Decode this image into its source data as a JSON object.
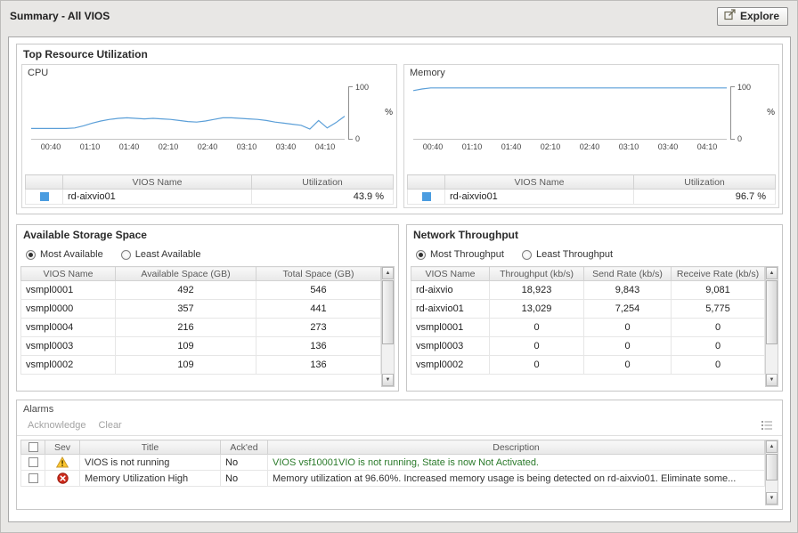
{
  "header": {
    "title": "Summary - All VIOS",
    "explore_button": "Explore"
  },
  "top_resource": {
    "title": "Top Resource Utilization",
    "cpu": {
      "title": "CPU",
      "columns": [
        "VIOS Name",
        "Utilization"
      ],
      "legend": {
        "name": "rd-aixvio01",
        "utilization": "43.9 %"
      }
    },
    "memory": {
      "title": "Memory",
      "columns": [
        "VIOS Name",
        "Utilization"
      ],
      "legend": {
        "name": "rd-aixvio01",
        "utilization": "96.7 %"
      }
    }
  },
  "chart_data": [
    {
      "type": "line",
      "title": "CPU",
      "ylabel": "%",
      "ylim": [
        0,
        100
      ],
      "y_ticks": [
        "0",
        "100"
      ],
      "x_ticks": [
        "00:40",
        "01:10",
        "01:40",
        "02:10",
        "02:40",
        "03:10",
        "03:40",
        "04:10"
      ],
      "grid": false,
      "legend_position": "bottom-table",
      "series": [
        {
          "name": "rd-aixvio01",
          "color": "#5b9fd8",
          "values": [
            21,
            21,
            21,
            21,
            21,
            22,
            26,
            31,
            35,
            38,
            40,
            41,
            40,
            39,
            40,
            39,
            38,
            36,
            34,
            33,
            35,
            38,
            41,
            41,
            40,
            39,
            38,
            36,
            33,
            31,
            29,
            27,
            20,
            36,
            22,
            32,
            44
          ]
        }
      ]
    },
    {
      "type": "line",
      "title": "Memory",
      "ylabel": "%",
      "ylim": [
        0,
        100
      ],
      "y_ticks": [
        "0",
        "100"
      ],
      "x_ticks": [
        "00:40",
        "01:10",
        "01:40",
        "02:10",
        "02:40",
        "03:10",
        "03:40",
        "04:10"
      ],
      "grid": false,
      "legend_position": "bottom-table",
      "series": [
        {
          "name": "rd-aixvio01",
          "color": "#5b9fd8",
          "values": [
            92,
            95,
            97,
            97,
            97,
            97,
            97,
            97,
            97,
            97,
            97,
            97,
            97,
            97,
            97,
            97,
            97,
            97,
            97,
            97,
            97,
            97,
            97,
            97,
            97,
            97,
            97,
            97,
            97,
            97,
            97,
            97,
            97,
            97,
            97,
            97,
            97
          ]
        }
      ]
    }
  ],
  "storage": {
    "title": "Available Storage Space",
    "options": [
      {
        "label": "Most Available",
        "selected": true
      },
      {
        "label": "Least Available",
        "selected": false
      }
    ],
    "columns": [
      "VIOS Name",
      "Available Space (GB)",
      "Total Space (GB)"
    ],
    "rows": [
      [
        "vsmpl0001",
        "492",
        "546"
      ],
      [
        "vsmpl0000",
        "357",
        "441"
      ],
      [
        "vsmpl0004",
        "216",
        "273"
      ],
      [
        "vsmpl0003",
        "109",
        "136"
      ],
      [
        "vsmpl0002",
        "109",
        "136"
      ]
    ]
  },
  "network": {
    "title": "Network Throughput",
    "options": [
      {
        "label": "Most Throughput",
        "selected": true
      },
      {
        "label": "Least Throughput",
        "selected": false
      }
    ],
    "columns": [
      "VIOS Name",
      "Throughput (kb/s)",
      "Send Rate (kb/s)",
      "Receive Rate (kb/s)"
    ],
    "rows": [
      [
        "rd-aixvio",
        "18,923",
        "9,843",
        "9,081"
      ],
      [
        "rd-aixvio01",
        "13,029",
        "7,254",
        "5,775"
      ],
      [
        "vsmpl0001",
        "0",
        "0",
        "0"
      ],
      [
        "vsmpl0003",
        "0",
        "0",
        "0"
      ],
      [
        "vsmpl0002",
        "0",
        "0",
        "0"
      ]
    ]
  },
  "alarms": {
    "title": "Alarms",
    "toolbar": {
      "acknowledge": "Acknowledge",
      "clear": "Clear"
    },
    "columns": {
      "sev": "Sev",
      "title": "Title",
      "acked": "Ack'ed",
      "description": "Description"
    },
    "rows": [
      {
        "severity": "warning",
        "title": "VIOS is not running",
        "acked": "No",
        "description": "VIOS vsf10001VIO is not running, State is now Not Activated.",
        "description_color": "#2a7a2a"
      },
      {
        "severity": "error",
        "title": "Memory Utilization High",
        "acked": "No",
        "description": "Memory utilization at 96.60%. Increased memory usage is being detected on rd-aixvio01. Eliminate some...",
        "description_color": "#333333"
      }
    ]
  },
  "colors": {
    "legend_swatch": "#4a9ce0",
    "chart_line": "#5b9fd8"
  }
}
